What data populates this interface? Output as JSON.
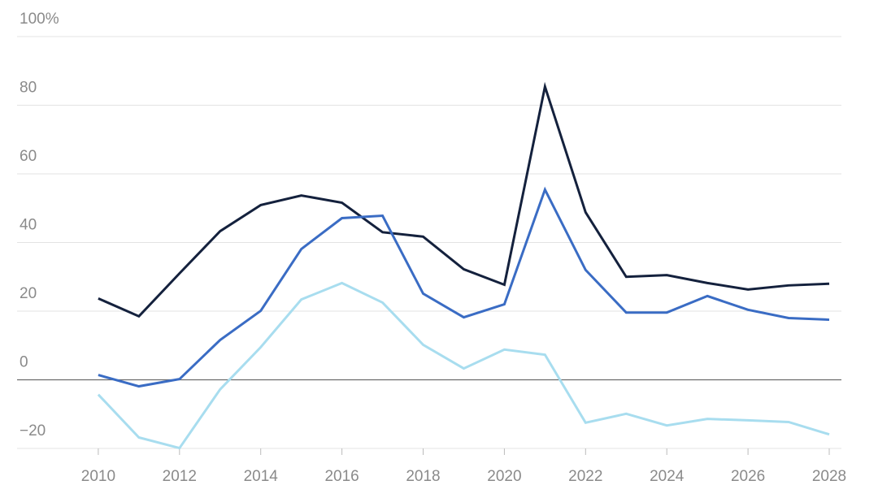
{
  "chart_data": {
    "type": "line",
    "x": [
      2010,
      2011,
      2012,
      2013,
      2014,
      2015,
      2016,
      2017,
      2018,
      2019,
      2020,
      2021,
      2022,
      2023,
      2024,
      2025,
      2026,
      2027,
      2028
    ],
    "series": [
      {
        "color": "#14213d",
        "values": [
          23.7,
          18.5,
          31,
          43.3,
          50.9,
          53.7,
          51.6,
          43,
          41.7,
          32.2,
          27.7,
          85.4,
          48.8,
          30,
          30.5,
          28.2,
          26.3,
          27.5,
          28
        ]
      },
      {
        "color": "#3a6cc4",
        "values": [
          1.4,
          -1.9,
          0.2,
          11.6,
          20.1,
          38.1,
          47.1,
          47.8,
          25.1,
          18.2,
          22,
          55.4,
          32,
          19.6,
          19.6,
          24.4,
          20.4,
          18,
          17.5
        ]
      },
      {
        "color": "#a8ddef",
        "values": [
          -4.3,
          -16.8,
          -19.9,
          -2.8,
          9.5,
          23.4,
          28.2,
          22.5,
          10.2,
          3.3,
          8.8,
          7.3,
          -12.5,
          -9.9,
          -13.3,
          -11.4,
          -11.8,
          -12.3,
          -15.9
        ]
      }
    ],
    "xlim": [
      2008,
      2028.3
    ],
    "xticks": [
      2010,
      2012,
      2014,
      2016,
      2018,
      2020,
      2022,
      2024,
      2026,
      2028
    ],
    "ylim": [
      -20,
      100
    ],
    "yticks": [
      {
        "value": -20,
        "label": "−20"
      },
      0,
      20,
      40,
      60,
      80,
      {
        "value": 100,
        "label": "100%"
      }
    ],
    "grid": true
  }
}
